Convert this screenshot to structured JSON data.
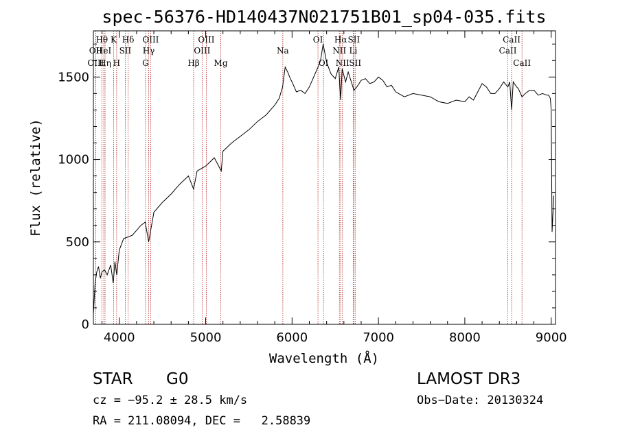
{
  "chart_data": {
    "type": "line",
    "title": "spec-56376-HD140437N021751B01_sp04-035.fits",
    "xlabel": "Wavelength (Å)",
    "ylabel": "Flux (relative)",
    "xlim": [
      3700,
      9050
    ],
    "ylim": [
      0,
      1780
    ],
    "xticks": [
      4000,
      5000,
      6000,
      7000,
      8000,
      9000
    ],
    "yticks": [
      0,
      500,
      1000,
      1500
    ],
    "series": [
      {
        "name": "spectrum",
        "x": [
          3700,
          3720,
          3740,
          3760,
          3780,
          3800,
          3830,
          3860,
          3900,
          3930,
          3950,
          3970,
          4000,
          4050,
          4100,
          4150,
          4200,
          4250,
          4300,
          4340,
          4400,
          4500,
          4600,
          4700,
          4800,
          4860,
          4900,
          5000,
          5100,
          5180,
          5200,
          5300,
          5400,
          5500,
          5600,
          5700,
          5800,
          5850,
          5890,
          5920,
          5950,
          5980,
          6000,
          6050,
          6100,
          6150,
          6200,
          6250,
          6300,
          6330,
          6360,
          6400,
          6450,
          6500,
          6540,
          6563,
          6580,
          6620,
          6650,
          6680,
          6717,
          6750,
          6800,
          6850,
          6900,
          6950,
          7000,
          7050,
          7100,
          7150,
          7200,
          7300,
          7400,
          7500,
          7600,
          7700,
          7800,
          7900,
          8000,
          8050,
          8100,
          8150,
          8200,
          8250,
          8300,
          8350,
          8400,
          8450,
          8498,
          8520,
          8542,
          8560,
          8600,
          8620,
          8662,
          8700,
          8750,
          8800,
          8850,
          8900,
          8950,
          8970,
          8990,
          9000,
          9010,
          9030
        ],
        "y": [
          60,
          250,
          320,
          350,
          280,
          320,
          330,
          300,
          360,
          250,
          380,
          300,
          450,
          520,
          530,
          540,
          570,
          600,
          620,
          500,
          680,
          740,
          790,
          850,
          900,
          820,
          930,
          960,
          1010,
          930,
          1050,
          1100,
          1140,
          1180,
          1230,
          1270,
          1330,
          1370,
          1440,
          1560,
          1530,
          1490,
          1470,
          1410,
          1420,
          1400,
          1440,
          1500,
          1560,
          1600,
          1700,
          1590,
          1520,
          1490,
          1560,
          1360,
          1550,
          1470,
          1530,
          1480,
          1420,
          1440,
          1480,
          1490,
          1460,
          1470,
          1500,
          1480,
          1440,
          1450,
          1410,
          1380,
          1400,
          1390,
          1380,
          1350,
          1340,
          1360,
          1350,
          1380,
          1360,
          1410,
          1460,
          1440,
          1400,
          1400,
          1430,
          1470,
          1440,
          1470,
          1300,
          1470,
          1440,
          1430,
          1380,
          1400,
          1420,
          1420,
          1390,
          1400,
          1390,
          1390,
          1370,
          1300,
          560,
          780
        ]
      }
    ],
    "spectral_lines": [
      {
        "label": "Hθ",
        "wavelength": 3798,
        "row": 0
      },
      {
        "label": "OII",
        "wavelength": 3727,
        "row": 1
      },
      {
        "label": "OIII",
        "wavelength": 3727,
        "row": 2
      },
      {
        "label": "HeI",
        "wavelength": 3820,
        "row": 1
      },
      {
        "label": "Hη",
        "wavelength": 3835,
        "row": 2
      },
      {
        "label": "K",
        "wavelength": 3934,
        "row": 0
      },
      {
        "label": "SII",
        "wavelength": 4069,
        "row": 1
      },
      {
        "label": "H",
        "wavelength": 3969,
        "row": 2
      },
      {
        "label": "Hδ",
        "wavelength": 4102,
        "row": 0
      },
      {
        "label": "OIII",
        "wavelength": 4363,
        "row": 0
      },
      {
        "label": "Hγ",
        "wavelength": 4340,
        "row": 1
      },
      {
        "label": "G",
        "wavelength": 4304,
        "row": 2
      },
      {
        "label": "Hβ",
        "wavelength": 4861,
        "row": 2
      },
      {
        "label": "OIII",
        "wavelength": 5007,
        "row": 0
      },
      {
        "label": "OIII",
        "wavelength": 4959,
        "row": 1
      },
      {
        "label": "Mg",
        "wavelength": 5175,
        "row": 2
      },
      {
        "label": "Na",
        "wavelength": 5893,
        "row": 1
      },
      {
        "label": "OI",
        "wavelength": 6300,
        "row": 0
      },
      {
        "label": "OI",
        "wavelength": 6364,
        "row": 2
      },
      {
        "label": "Hα",
        "wavelength": 6563,
        "row": 0
      },
      {
        "label": "SII",
        "wavelength": 6716,
        "row": 0
      },
      {
        "label": "NII",
        "wavelength": 6548,
        "row": 1
      },
      {
        "label": "Li",
        "wavelength": 6708,
        "row": 1
      },
      {
        "label": "NII",
        "wavelength": 6584,
        "row": 2
      },
      {
        "label": "SII",
        "wavelength": 6731,
        "row": 2
      },
      {
        "label": "CaII",
        "wavelength": 8542,
        "row": 0
      },
      {
        "label": "CaII",
        "wavelength": 8498,
        "row": 1
      },
      {
        "label": "CaII",
        "wavelength": 8662,
        "row": 2
      }
    ]
  },
  "info": {
    "object_class": "STAR",
    "subclass": "G0",
    "survey": "LAMOST DR3",
    "redshift": "cz = −95.2 ± 28.5 km/s",
    "obs_date": "Obs−Date: 20130324",
    "coords": "RA = 211.08094, DEC =   2.58839"
  },
  "colors": {
    "line_marker": "#b22222",
    "spectrum": "#000000"
  }
}
